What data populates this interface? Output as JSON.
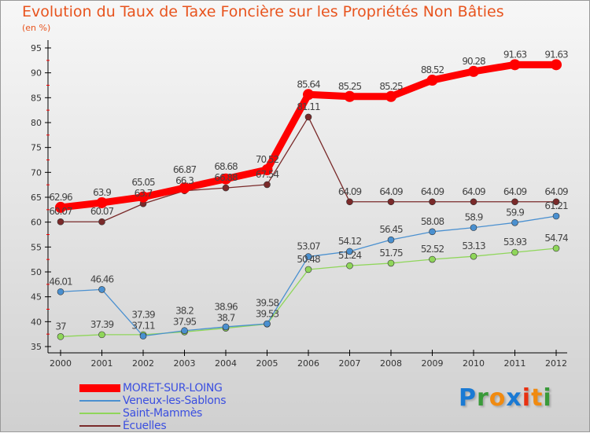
{
  "chart_data": {
    "type": "line",
    "title": "Evolution du Taux de Taxe Foncière sur les Propriétés Non Bâties",
    "ylabel": "(en %)",
    "xlabel": "",
    "ylim": [
      35,
      95
    ],
    "yticks": [
      "35",
      "40",
      "45",
      "50",
      "55",
      "60",
      "65",
      "70",
      "75",
      "80",
      "85",
      "90",
      "95"
    ],
    "x": [
      "2000",
      "2001",
      "2002",
      "2003",
      "2004",
      "2005",
      "2006",
      "2007",
      "2008",
      "2009",
      "2010",
      "2011",
      "2012"
    ],
    "grid": false,
    "legend_position": "bottom-left",
    "series": [
      {
        "name": "MORET-SUR-LOING",
        "color": "#ff0000",
        "values": [
          62.96,
          63.9,
          65.05,
          66.87,
          68.68,
          70.52,
          85.64,
          85.25,
          85.25,
          88.52,
          90.28,
          91.63,
          91.63
        ]
      },
      {
        "name": "Veneux-les-Sablons",
        "color": "#4a90d0",
        "values": [
          46.01,
          46.46,
          37.11,
          38.2,
          38.96,
          39.58,
          53.07,
          54.12,
          56.45,
          58.08,
          58.9,
          59.9,
          61.21
        ]
      },
      {
        "name": "Saint-Mammès",
        "color": "#8fd65a",
        "values": [
          37,
          37.39,
          37.39,
          37.95,
          38.7,
          39.53,
          50.48,
          51.24,
          51.75,
          52.52,
          53.13,
          53.93,
          54.74
        ]
      },
      {
        "name": "Écuelles",
        "color": "#7a2a2a",
        "values": [
          60.07,
          60.07,
          63.7,
          66.3,
          66.88,
          67.54,
          81.11,
          64.09,
          64.09,
          64.09,
          64.09,
          64.09,
          64.09
        ]
      }
    ]
  },
  "logo": {
    "text": "Proxiti"
  }
}
